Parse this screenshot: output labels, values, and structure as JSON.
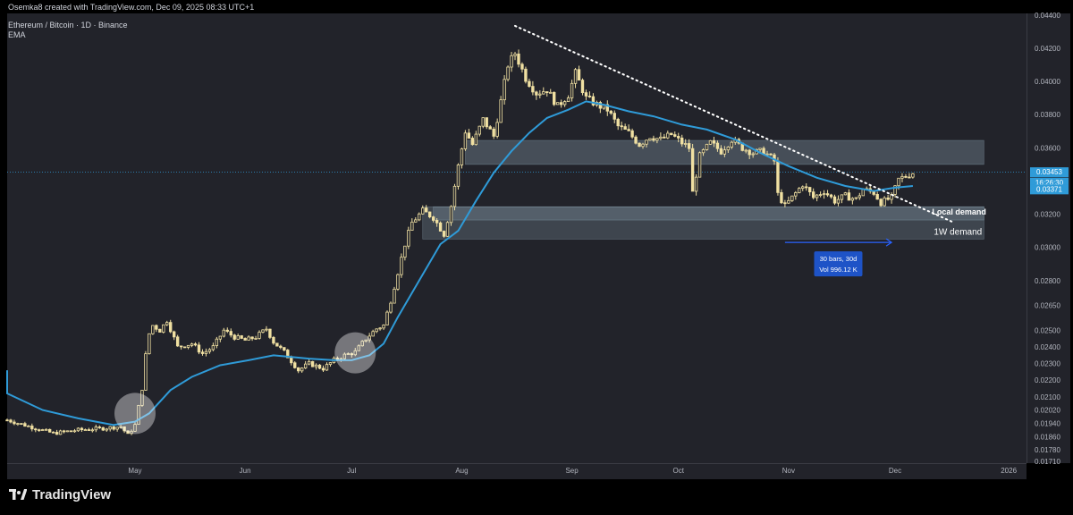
{
  "header": {
    "credit": "Osemka8 created with TradingView.com, Dec 09, 2025 08:33 UTC+1",
    "symbol": "Ethereum / Bitcoin · 1D · Binance",
    "indicator": "EMA"
  },
  "brand": {
    "name": "TradingView",
    "icon": "tradingview-logo-icon"
  },
  "colors": {
    "background": "#22232a",
    "outer": "#000000",
    "candle_up": "#f0e0a2",
    "candle_down": "#f0e0a2",
    "ema": "#2f9bd8",
    "zone": "#a5c0d2",
    "price_line": "#2f9bd8",
    "grid_text": "#b2b5be"
  },
  "chart_data": {
    "type": "candlestick",
    "title": "Ethereum / Bitcoin · 1D · Binance",
    "ylim": [
      0.017,
      0.0441
    ],
    "x_tick_labels": [
      "May",
      "Jun",
      "Jul",
      "Aug",
      "Sep",
      "Oct",
      "Nov",
      "Dec",
      "2026"
    ],
    "y_tick_labels": [
      "0.04400",
      "0.04200",
      "0.04000",
      "0.03800",
      "0.03600",
      "0.03200",
      "0.03000",
      "0.02800",
      "0.02650",
      "0.02500",
      "0.02400",
      "0.02300",
      "0.02200",
      "0.02100",
      "0.02020",
      "0.01940",
      "0.01860",
      "0.01780",
      "0.01710"
    ],
    "y_ticks": [
      0.044,
      0.042,
      0.04,
      0.038,
      0.036,
      0.032,
      0.03,
      0.028,
      0.0265,
      0.025,
      0.024,
      0.023,
      0.022,
      0.021,
      0.0202,
      0.0194,
      0.0186,
      0.0178,
      0.0171
    ],
    "x_ticks_day": [
      36,
      67,
      97,
      128,
      159,
      189,
      220,
      250,
      282
    ],
    "grid": false,
    "series": [
      {
        "name": "ETHBTC",
        "kind": "candles",
        "start_date": "2025-03-26",
        "close_points": [
          [
            0,
            0.0196
          ],
          [
            8,
            0.0191
          ],
          [
            13,
            0.0188
          ],
          [
            20,
            0.019
          ],
          [
            27,
            0.0191
          ],
          [
            32,
            0.0192
          ],
          [
            34,
            0.0187
          ],
          [
            36,
            0.0193
          ],
          [
            38,
            0.0215
          ],
          [
            39,
            0.0235
          ],
          [
            40,
            0.0248
          ],
          [
            41,
            0.0253
          ],
          [
            43,
            0.025
          ],
          [
            45,
            0.0256
          ],
          [
            48,
            0.024
          ],
          [
            52,
            0.0242
          ],
          [
            55,
            0.0236
          ],
          [
            58,
            0.024
          ],
          [
            61,
            0.025
          ],
          [
            64,
            0.0246
          ],
          [
            67,
            0.0244
          ],
          [
            70,
            0.0246
          ],
          [
            73,
            0.0251
          ],
          [
            75,
            0.0243
          ],
          [
            78,
            0.0237
          ],
          [
            82,
            0.0226
          ],
          [
            85,
            0.023
          ],
          [
            89,
            0.0227
          ],
          [
            92,
            0.0232
          ],
          [
            95,
            0.0235
          ],
          [
            98,
            0.0237
          ],
          [
            101,
            0.0245
          ],
          [
            104,
            0.0251
          ],
          [
            106,
            0.0253
          ],
          [
            108,
            0.0268
          ],
          [
            110,
            0.0285
          ],
          [
            112,
            0.0302
          ],
          [
            114,
            0.0315
          ],
          [
            117,
            0.0322
          ],
          [
            120,
            0.0318
          ],
          [
            123,
            0.0308
          ],
          [
            125,
            0.0325
          ],
          [
            127,
            0.0349
          ],
          [
            129,
            0.037
          ],
          [
            131,
            0.0362
          ],
          [
            134,
            0.0377
          ],
          [
            137,
            0.0367
          ],
          [
            139,
            0.0388
          ],
          [
            141,
            0.041
          ],
          [
            143,
            0.0417
          ],
          [
            146,
            0.0402
          ],
          [
            149,
            0.0393
          ],
          [
            152,
            0.0395
          ],
          [
            155,
            0.0385
          ],
          [
            158,
            0.0392
          ],
          [
            160,
            0.0405
          ],
          [
            163,
            0.039
          ],
          [
            166,
            0.0386
          ],
          [
            169,
            0.0383
          ],
          [
            172,
            0.0373
          ],
          [
            175,
            0.0369
          ],
          [
            178,
            0.0362
          ],
          [
            181,
            0.0367
          ],
          [
            184,
            0.0365
          ],
          [
            187,
            0.0368
          ],
          [
            190,
            0.0363
          ],
          [
            192,
            0.036
          ],
          [
            193,
            0.0333
          ],
          [
            195,
            0.0355
          ],
          [
            198,
            0.0363
          ],
          [
            201,
            0.0358
          ],
          [
            204,
            0.0365
          ],
          [
            207,
            0.036
          ],
          [
            210,
            0.0357
          ],
          [
            213,
            0.0358
          ],
          [
            216,
            0.0352
          ],
          [
            217,
            0.0332
          ],
          [
            219,
            0.0325
          ],
          [
            221,
            0.033
          ],
          [
            224,
            0.0338
          ],
          [
            227,
            0.033
          ],
          [
            230,
            0.0334
          ],
          [
            233,
            0.0328
          ],
          [
            236,
            0.0331
          ],
          [
            239,
            0.0329
          ],
          [
            241,
            0.0335
          ],
          [
            244,
            0.0333
          ],
          [
            246,
            0.0327
          ],
          [
            249,
            0.033
          ],
          [
            251,
            0.0341
          ],
          [
            253,
            0.0343
          ],
          [
            255,
            0.0345
          ]
        ]
      },
      {
        "name": "EMA",
        "kind": "line",
        "points": [
          [
            -8,
            0.0226
          ],
          [
            0,
            0.0212
          ],
          [
            10,
            0.0202
          ],
          [
            20,
            0.0197
          ],
          [
            30,
            0.0193
          ],
          [
            36,
            0.0195
          ],
          [
            40,
            0.02
          ],
          [
            46,
            0.0214
          ],
          [
            52,
            0.0222
          ],
          [
            60,
            0.0229
          ],
          [
            68,
            0.0232
          ],
          [
            75,
            0.0235
          ],
          [
            80,
            0.0234
          ],
          [
            85,
            0.0233
          ],
          [
            92,
            0.0232
          ],
          [
            97,
            0.0232
          ],
          [
            102,
            0.0235
          ],
          [
            106,
            0.0242
          ],
          [
            110,
            0.0258
          ],
          [
            116,
            0.028
          ],
          [
            122,
            0.0302
          ],
          [
            127,
            0.031
          ],
          [
            132,
            0.0328
          ],
          [
            137,
            0.0345
          ],
          [
            142,
            0.0358
          ],
          [
            147,
            0.0369
          ],
          [
            152,
            0.0378
          ],
          [
            158,
            0.0383
          ],
          [
            163,
            0.0388
          ],
          [
            168,
            0.0386
          ],
          [
            175,
            0.0382
          ],
          [
            182,
            0.0379
          ],
          [
            190,
            0.0374
          ],
          [
            197,
            0.0371
          ],
          [
            205,
            0.0365
          ],
          [
            212,
            0.0357
          ],
          [
            220,
            0.0349
          ],
          [
            228,
            0.0342
          ],
          [
            236,
            0.0337
          ],
          [
            244,
            0.0334
          ],
          [
            250,
            0.0336
          ],
          [
            255,
            0.0337
          ]
        ]
      }
    ],
    "trendline": {
      "style": "dotted",
      "from": [
        143,
        0.04335
      ],
      "to": [
        266,
        0.03155
      ]
    },
    "zones": [
      {
        "label": "",
        "from_day": 129,
        "to_day": 275,
        "y1": 0.035,
        "y2": 0.03645
      },
      {
        "label": "Local demand",
        "from_day": 120,
        "to_day": 275,
        "y1": 0.03165,
        "y2": 0.03245
      },
      {
        "label": "1W demand",
        "from_day": 117,
        "to_day": 275,
        "y1": 0.0305,
        "y2": 0.03245
      }
    ],
    "circles": [
      {
        "day": 36,
        "value": 0.02
      },
      {
        "day": 98,
        "value": 0.02365
      }
    ],
    "measure": {
      "from_day": 219,
      "to_day": 249,
      "value": 0.0303,
      "line1": "30 bars, 30d",
      "line2": "Vol 996.12 K"
    },
    "price_labels": [
      {
        "text": "0.03453",
        "value": 0.03453,
        "color": "#2f9bd8"
      },
      {
        "text": "16:26:30",
        "value": 0.0342,
        "color": "#2f9bd8"
      },
      {
        "text": "0.03371",
        "value": 0.03371,
        "color": "#2f9bd8"
      }
    ],
    "last_price_line": 0.03453
  }
}
